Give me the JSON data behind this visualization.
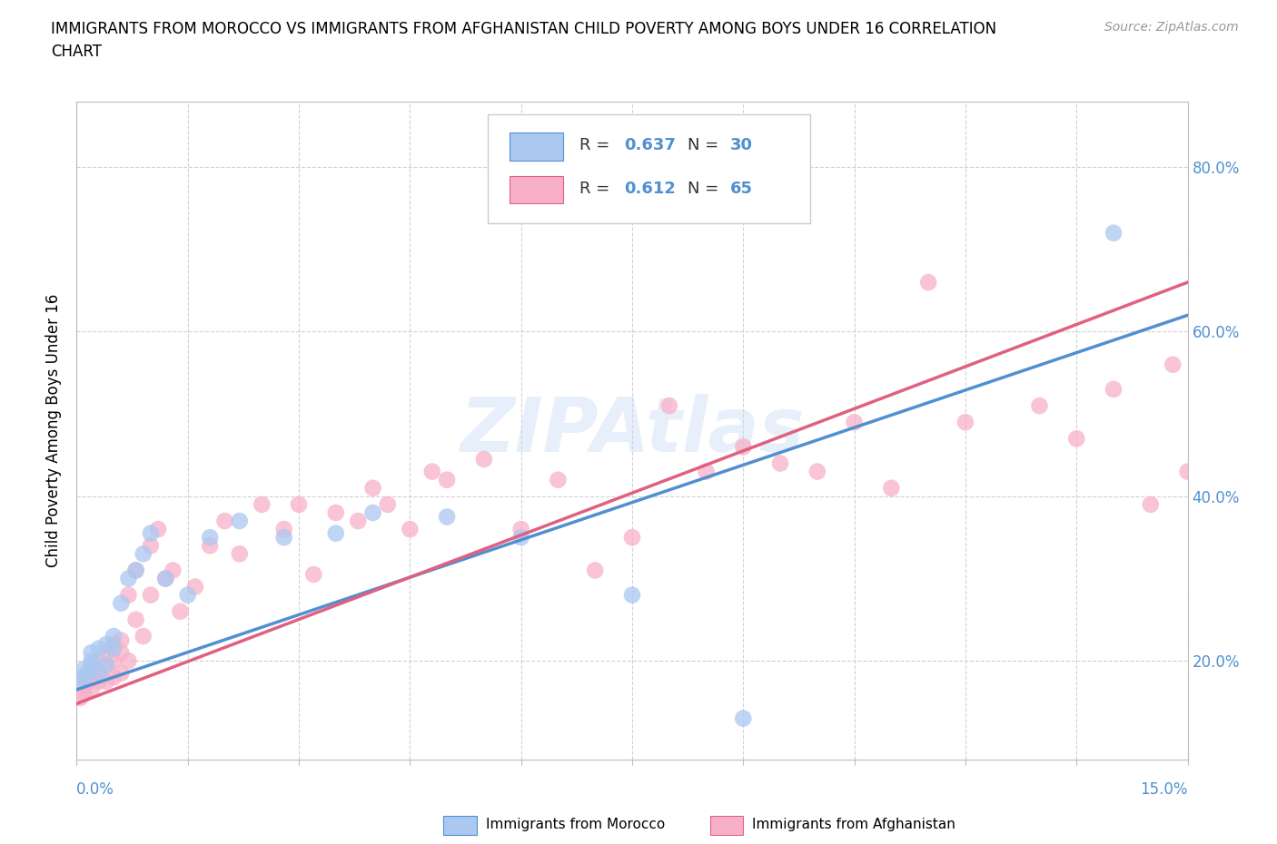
{
  "title": "IMMIGRANTS FROM MOROCCO VS IMMIGRANTS FROM AFGHANISTAN CHILD POVERTY AMONG BOYS UNDER 16 CORRELATION\nCHART",
  "source": "Source: ZipAtlas.com",
  "ylabel": "Child Poverty Among Boys Under 16",
  "y_tick_vals": [
    0.2,
    0.4,
    0.6,
    0.8
  ],
  "x_range": [
    0.0,
    0.15
  ],
  "y_range": [
    0.08,
    0.88
  ],
  "color_morocco": "#aac8f0",
  "color_afghanistan": "#f8b0c8",
  "color_line_morocco": "#5090d0",
  "color_line_afghanistan": "#e06080",
  "watermark": "ZIPAtlas",
  "morocco_R": 0.637,
  "morocco_N": 30,
  "afghanistan_R": 0.612,
  "afghanistan_N": 65,
  "morocco_scatter_x": [
    0.0005,
    0.001,
    0.001,
    0.0015,
    0.002,
    0.002,
    0.002,
    0.003,
    0.003,
    0.004,
    0.004,
    0.005,
    0.005,
    0.006,
    0.007,
    0.008,
    0.009,
    0.01,
    0.012,
    0.015,
    0.018,
    0.022,
    0.028,
    0.035,
    0.04,
    0.05,
    0.06,
    0.075,
    0.09,
    0.14
  ],
  "morocco_scatter_y": [
    0.175,
    0.18,
    0.19,
    0.185,
    0.195,
    0.2,
    0.21,
    0.185,
    0.215,
    0.22,
    0.195,
    0.215,
    0.23,
    0.27,
    0.3,
    0.31,
    0.33,
    0.355,
    0.3,
    0.28,
    0.35,
    0.37,
    0.35,
    0.355,
    0.38,
    0.375,
    0.35,
    0.28,
    0.13,
    0.72
  ],
  "afghanistan_scatter_x": [
    0.0005,
    0.001,
    0.001,
    0.0015,
    0.002,
    0.002,
    0.002,
    0.003,
    0.003,
    0.003,
    0.004,
    0.004,
    0.004,
    0.005,
    0.005,
    0.005,
    0.006,
    0.006,
    0.006,
    0.007,
    0.007,
    0.008,
    0.008,
    0.009,
    0.01,
    0.01,
    0.011,
    0.012,
    0.013,
    0.014,
    0.016,
    0.018,
    0.02,
    0.022,
    0.025,
    0.028,
    0.03,
    0.032,
    0.035,
    0.038,
    0.04,
    0.042,
    0.045,
    0.048,
    0.05,
    0.055,
    0.06,
    0.065,
    0.07,
    0.075,
    0.08,
    0.085,
    0.09,
    0.095,
    0.1,
    0.105,
    0.11,
    0.115,
    0.12,
    0.13,
    0.135,
    0.14,
    0.145,
    0.148,
    0.15
  ],
  "afghanistan_scatter_y": [
    0.155,
    0.16,
    0.17,
    0.175,
    0.165,
    0.18,
    0.19,
    0.175,
    0.185,
    0.2,
    0.175,
    0.195,
    0.21,
    0.18,
    0.2,
    0.22,
    0.185,
    0.21,
    0.225,
    0.2,
    0.28,
    0.25,
    0.31,
    0.23,
    0.28,
    0.34,
    0.36,
    0.3,
    0.31,
    0.26,
    0.29,
    0.34,
    0.37,
    0.33,
    0.39,
    0.36,
    0.39,
    0.305,
    0.38,
    0.37,
    0.41,
    0.39,
    0.36,
    0.43,
    0.42,
    0.445,
    0.36,
    0.42,
    0.31,
    0.35,
    0.51,
    0.43,
    0.46,
    0.44,
    0.43,
    0.49,
    0.41,
    0.66,
    0.49,
    0.51,
    0.47,
    0.53,
    0.39,
    0.56,
    0.43
  ],
  "line_morocco_x0": 0.0,
  "line_morocco_y0": 0.165,
  "line_morocco_x1": 0.15,
  "line_morocco_y1": 0.62,
  "line_afghanistan_x0": 0.0,
  "line_afghanistan_y0": 0.148,
  "line_afghanistan_x1": 0.15,
  "line_afghanistan_y1": 0.66
}
